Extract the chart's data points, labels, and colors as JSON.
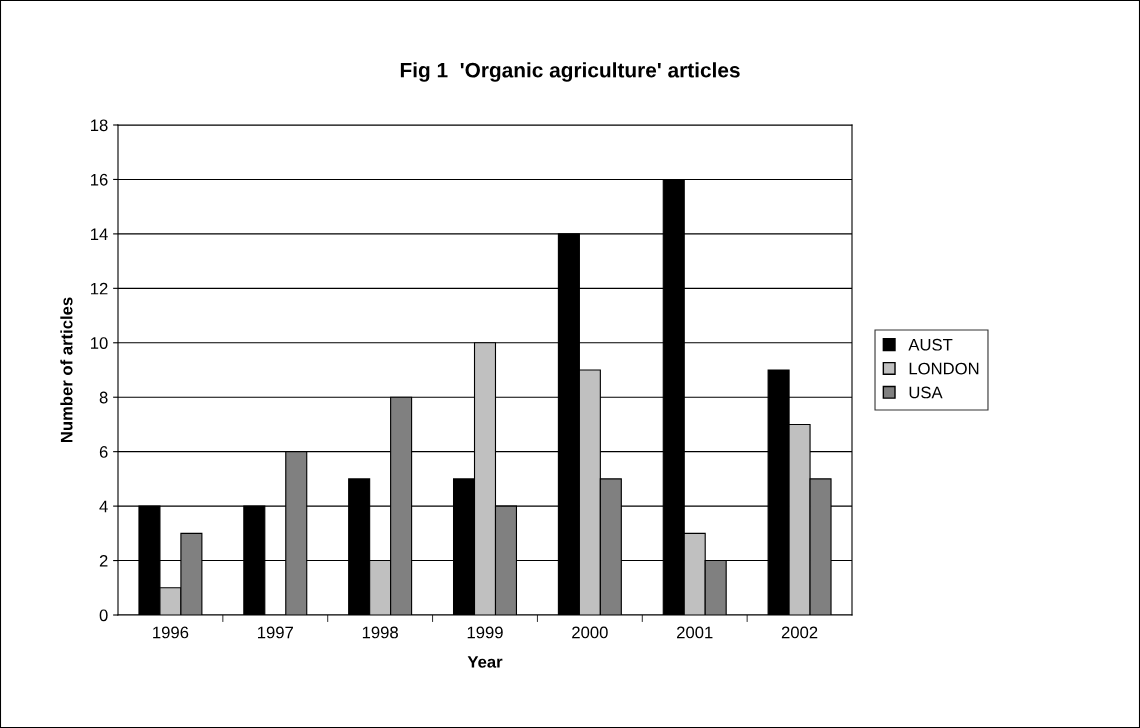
{
  "chart_data": {
    "type": "bar",
    "title": "Fig 1  'Organic agriculture' articles",
    "xlabel": "Year",
    "ylabel": "Number of articles",
    "categories": [
      "1996",
      "1997",
      "1998",
      "1999",
      "2000",
      "2001",
      "2002"
    ],
    "series": [
      {
        "name": "AUST",
        "color": "#000000",
        "values": [
          4,
          4,
          5,
          5,
          14,
          16,
          9
        ]
      },
      {
        "name": "LONDON",
        "color": "#c0c0c0",
        "values": [
          1,
          0,
          2,
          10,
          9,
          3,
          7
        ]
      },
      {
        "name": "USA",
        "color": "#808080",
        "values": [
          3,
          6,
          8,
          4,
          5,
          2,
          5
        ]
      }
    ],
    "ylim": [
      0,
      18
    ],
    "yticks": [
      0,
      2,
      4,
      6,
      8,
      10,
      12,
      14,
      16,
      18
    ],
    "grid": "y",
    "legend": "right"
  }
}
